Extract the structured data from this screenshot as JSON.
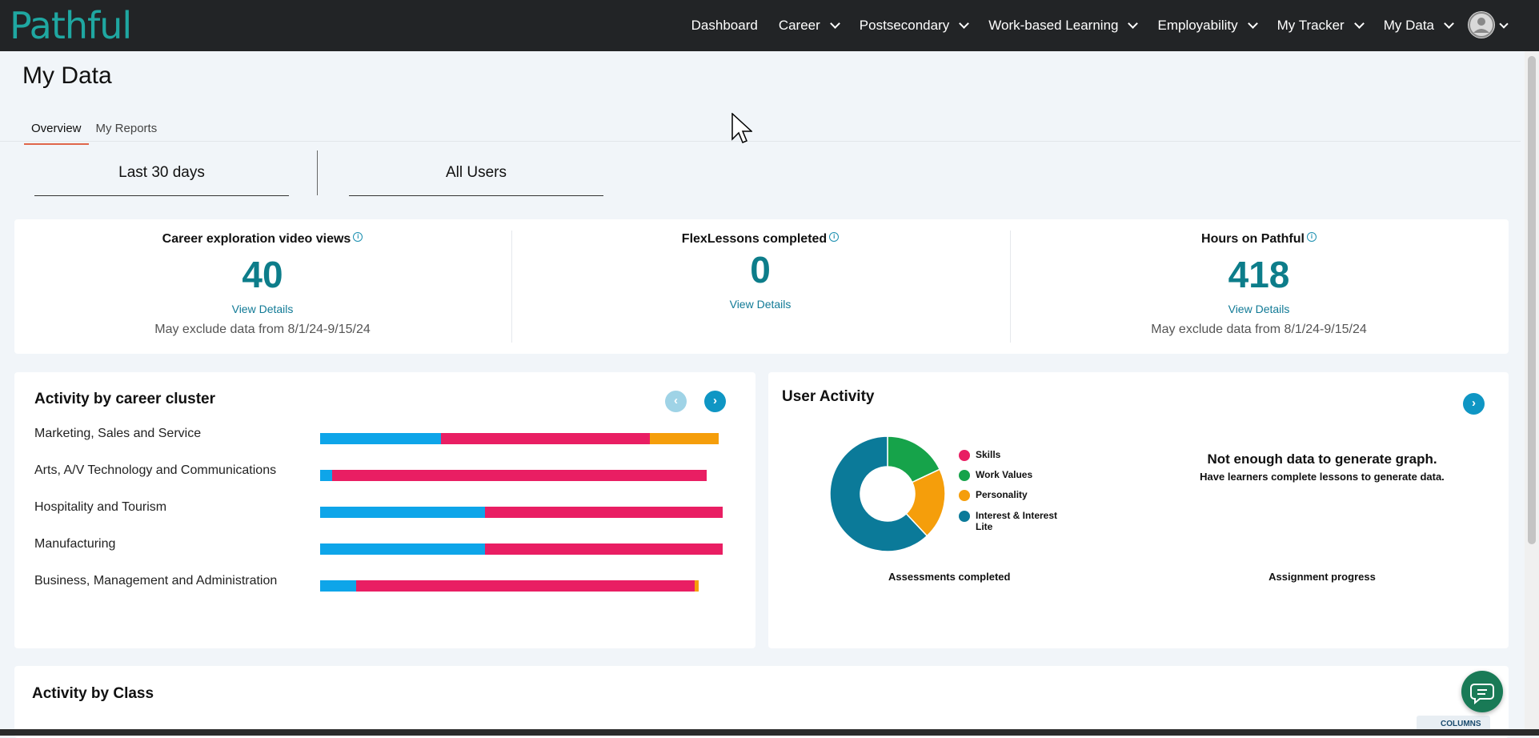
{
  "header": {
    "logo": "Pathful",
    "nav": [
      {
        "label": "Dashboard",
        "dropdown": false
      },
      {
        "label": "Career",
        "dropdown": true
      },
      {
        "label": "Postsecondary",
        "dropdown": true
      },
      {
        "label": "Work-based Learning",
        "dropdown": true
      },
      {
        "label": "Employability",
        "dropdown": true
      },
      {
        "label": "My Tracker",
        "dropdown": true
      },
      {
        "label": "My Data",
        "dropdown": true
      }
    ]
  },
  "page": {
    "title": "My Data",
    "tabs": [
      {
        "label": "Overview",
        "active": true
      },
      {
        "label": "My Reports",
        "active": false
      }
    ]
  },
  "filters": {
    "date_range": "Last 30 days",
    "users": "All Users"
  },
  "stats": [
    {
      "title": "Career exploration video views",
      "value": "40",
      "link": "View Details",
      "note": "May exclude data from 8/1/24-9/15/24"
    },
    {
      "title": "FlexLessons completed",
      "value": "0",
      "link": "View Details",
      "note": ""
    },
    {
      "title": "Hours on Pathful",
      "value": "418",
      "link": "View Details",
      "note": "May exclude data from 8/1/24-9/15/24"
    }
  ],
  "career_cluster": {
    "title": "Activity by career cluster",
    "chart_data": {
      "type": "bar",
      "orientation": "horizontal-stacked",
      "categories": [
        "Marketing, Sales and Service",
        "Arts, A/V Technology and Communications",
        "Hospitality and Tourism",
        "Manufacturing",
        "Business, Management and Administration"
      ],
      "series": [
        {
          "color": "#0ea5e9",
          "values": [
            30,
            3,
            41,
            41,
            9
          ]
        },
        {
          "color": "#e91e63",
          "values": [
            52,
            93,
            59,
            59,
            84
          ]
        },
        {
          "color": "#f59e0b",
          "values": [
            17,
            0,
            0,
            0,
            1
          ]
        }
      ]
    }
  },
  "user_activity": {
    "title": "User Activity",
    "donut": {
      "caption": "Assessments completed",
      "chart_data": {
        "type": "pie",
        "categories": [
          "Skills",
          "Work Values",
          "Personality",
          "Interest & Interest Lite"
        ],
        "values": [
          0,
          18,
          20,
          62
        ],
        "colors": [
          "#e91e63",
          "#16a34a",
          "#f59e0b",
          "#0b7a99"
        ],
        "legend": "right"
      }
    },
    "assignment": {
      "message": "Not enough data to generate graph.",
      "sub": "Have learners complete lessons to generate data.",
      "caption": "Assignment progress"
    }
  },
  "activity_class": {
    "title": "Activity by Class",
    "columns_label": "COLUMNS"
  },
  "colors": {
    "topbar": "#222426",
    "accent_teal": "#0d7d8a",
    "link": "#117a96"
  }
}
